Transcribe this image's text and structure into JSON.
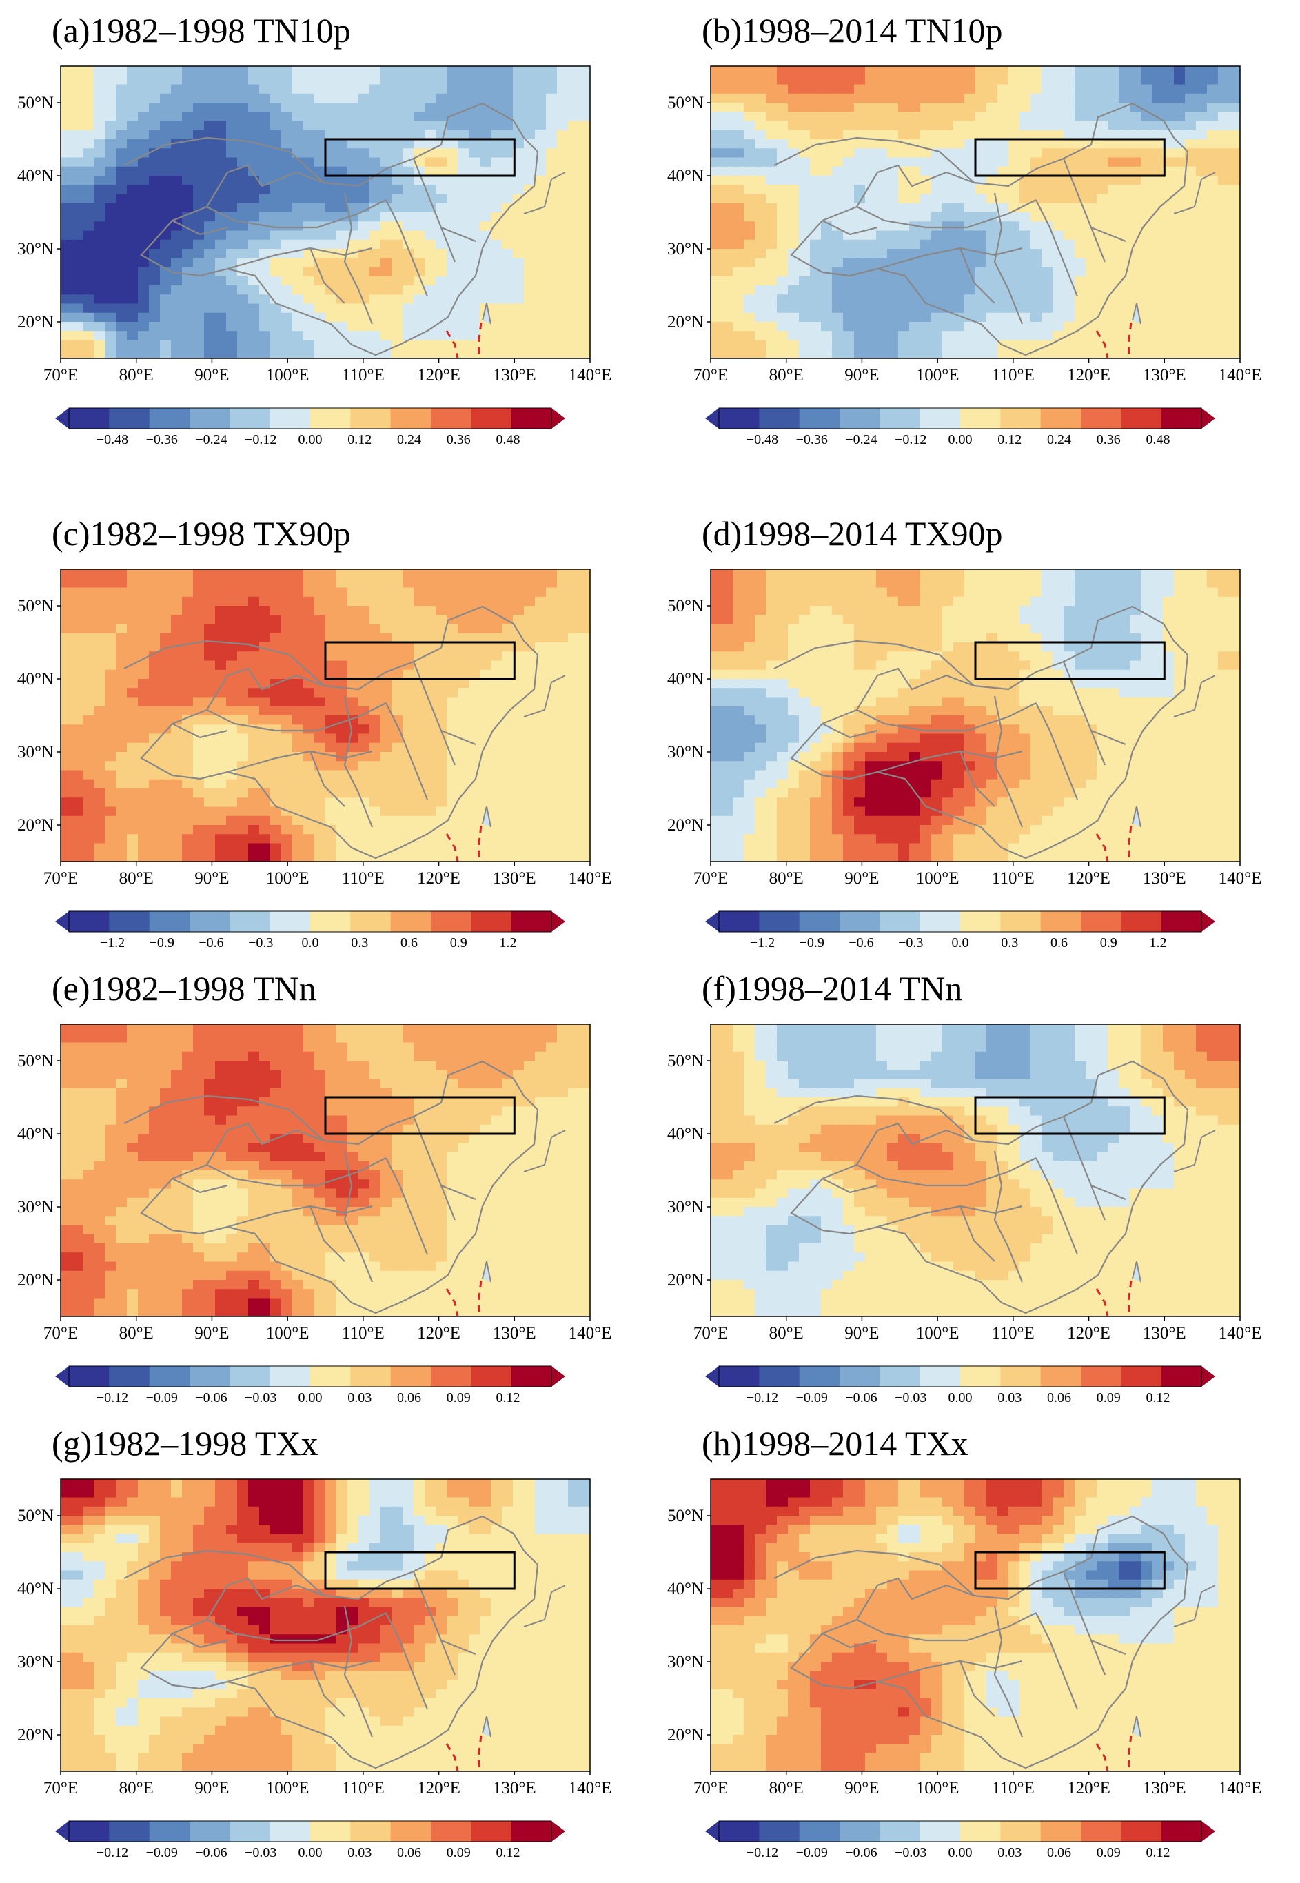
{
  "figure": {
    "x_ticks": [
      "70°E",
      "80°E",
      "90°E",
      "100°E",
      "110°E",
      "120°E",
      "130°E",
      "140°E"
    ],
    "y_ticks": [
      "50°N",
      "40°N",
      "30°N",
      "20°N"
    ]
  },
  "palette": [
    "#313695",
    "#3f5aa5",
    "#5b86bd",
    "#7fa9d1",
    "#a7cbe2",
    "#d6e9f2",
    "#fbe9a6",
    "#f9cf82",
    "#f6a460",
    "#ed6f48",
    "#d73c2f",
    "#a50026"
  ],
  "panels": [
    {
      "title": "(a)1982–1998 TN10p",
      "colorbar": [
        "−0.48",
        "−0.36",
        "−0.24",
        "−0.12",
        "0.00",
        "0.12",
        "0.24",
        "0.36",
        "0.48"
      ],
      "gradient": "cold-west",
      "values": [
        -0.48,
        0.48
      ]
    },
    {
      "title": "(b)1998–2014 TN10p",
      "colorbar": [
        "−0.48",
        "−0.36",
        "−0.24",
        "−0.12",
        "0.00",
        "0.12",
        "0.24",
        "0.36",
        "0.48"
      ],
      "gradient": "mixed",
      "values": [
        -0.48,
        0.48
      ]
    },
    {
      "title": "(c)1982–1998 TX90p",
      "colorbar": [
        "−1.2",
        "−0.9",
        "−0.6",
        "−0.3",
        "0.0",
        "0.3",
        "0.6",
        "0.9",
        "1.2"
      ],
      "gradient": "warm",
      "values": [
        -1.2,
        1.2
      ]
    },
    {
      "title": "(d)1998–2014 TX90p",
      "colorbar": [
        "−1.2",
        "−0.9",
        "−0.6",
        "−0.3",
        "0.0",
        "0.3",
        "0.6",
        "0.9",
        "1.2"
      ],
      "gradient": "warm-south",
      "values": [
        -1.2,
        1.2
      ]
    },
    {
      "title": "(e)1982–1998 TNn",
      "colorbar": [
        "−0.12",
        "−0.09",
        "−0.06",
        "−0.03",
        "0.00",
        "0.03",
        "0.06",
        "0.09",
        "0.12"
      ],
      "gradient": "warm",
      "values": [
        -0.12,
        0.12
      ]
    },
    {
      "title": "(f)1998–2014 TNn",
      "colorbar": [
        "−0.12",
        "−0.09",
        "−0.06",
        "−0.03",
        "0.00",
        "0.03",
        "0.06",
        "0.09",
        "0.12"
      ],
      "gradient": "mixed-cold-north",
      "values": [
        -0.12,
        0.12
      ]
    },
    {
      "title": "(g)1982–1998 TXx",
      "colorbar": [
        "−0.12",
        "−0.09",
        "−0.06",
        "−0.03",
        "0.00",
        "0.03",
        "0.06",
        "0.09",
        "0.12"
      ],
      "gradient": "warm-north",
      "values": [
        -0.12,
        0.12
      ]
    },
    {
      "title": "(h)1998–2014 TXx",
      "colorbar": [
        "−0.12",
        "−0.09",
        "−0.06",
        "−0.03",
        "0.00",
        "0.03",
        "0.06",
        "0.09",
        "0.12"
      ],
      "gradient": "warm-west",
      "values": [
        -0.12,
        0.12
      ]
    }
  ]
}
